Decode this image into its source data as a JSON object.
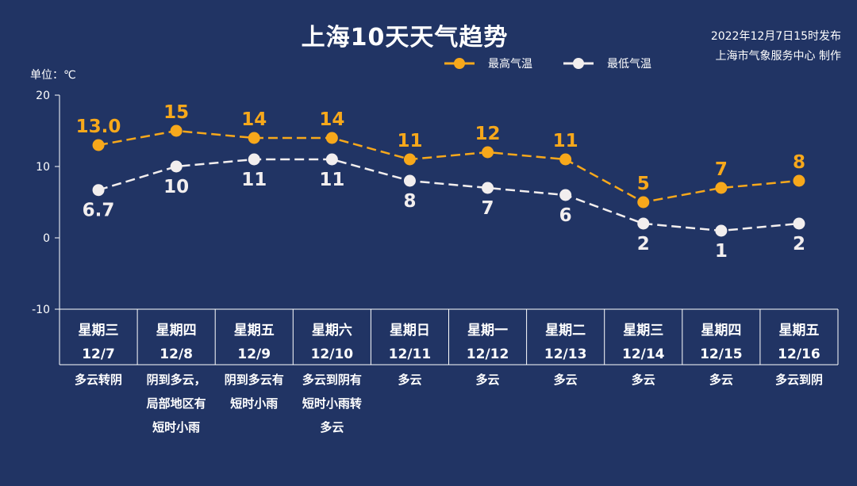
{
  "header": {
    "title": "上海10天天气趋势",
    "publish": "2022年12月7日15时发布",
    "producer": "上海市气象服务中心 制作",
    "unit": "单位：℃"
  },
  "colors": {
    "background": "#213464",
    "high": "#F7A81B",
    "low": "#F2EEEE",
    "axis": "#ffffff"
  },
  "chart_data": {
    "type": "line",
    "ylim": [
      -10,
      20
    ],
    "yticks": [
      -10,
      0,
      10,
      20
    ],
    "grid": false,
    "legend_position": "top",
    "categories": [
      {
        "weekday": "星期三",
        "date": "12/7",
        "weather": [
          "多云转阴"
        ]
      },
      {
        "weekday": "星期四",
        "date": "12/8",
        "weather": [
          "阴到多云，",
          "局部地区有",
          "短时小雨"
        ]
      },
      {
        "weekday": "星期五",
        "date": "12/9",
        "weather": [
          "阴到多云有",
          "短时小雨"
        ]
      },
      {
        "weekday": "星期六",
        "date": "12/10",
        "weather": [
          "多云到阴有",
          "短时小雨转",
          "多云"
        ]
      },
      {
        "weekday": "星期日",
        "date": "12/11",
        "weather": [
          "多云"
        ]
      },
      {
        "weekday": "星期一",
        "date": "12/12",
        "weather": [
          "多云"
        ]
      },
      {
        "weekday": "星期二",
        "date": "12/13",
        "weather": [
          "多云"
        ]
      },
      {
        "weekday": "星期三",
        "date": "12/14",
        "weather": [
          "多云"
        ]
      },
      {
        "weekday": "星期四",
        "date": "12/15",
        "weather": [
          "多云"
        ]
      },
      {
        "weekday": "星期五",
        "date": "12/16",
        "weather": [
          "多云到阴"
        ]
      }
    ],
    "series": [
      {
        "name": "最高气温",
        "key": "high",
        "values": [
          13.0,
          15,
          14,
          14,
          11,
          12,
          11,
          5,
          7,
          8
        ],
        "labels": [
          "13.0",
          "15",
          "14",
          "14",
          "11",
          "12",
          "11",
          "5",
          "7",
          "8"
        ]
      },
      {
        "name": "最低气温",
        "key": "low",
        "values": [
          6.7,
          10,
          11,
          11,
          8,
          7,
          6,
          2,
          1,
          2
        ],
        "labels": [
          "6.7",
          "10",
          "11",
          "11",
          "8",
          "7",
          "6",
          "2",
          "1",
          "2"
        ]
      }
    ]
  }
}
